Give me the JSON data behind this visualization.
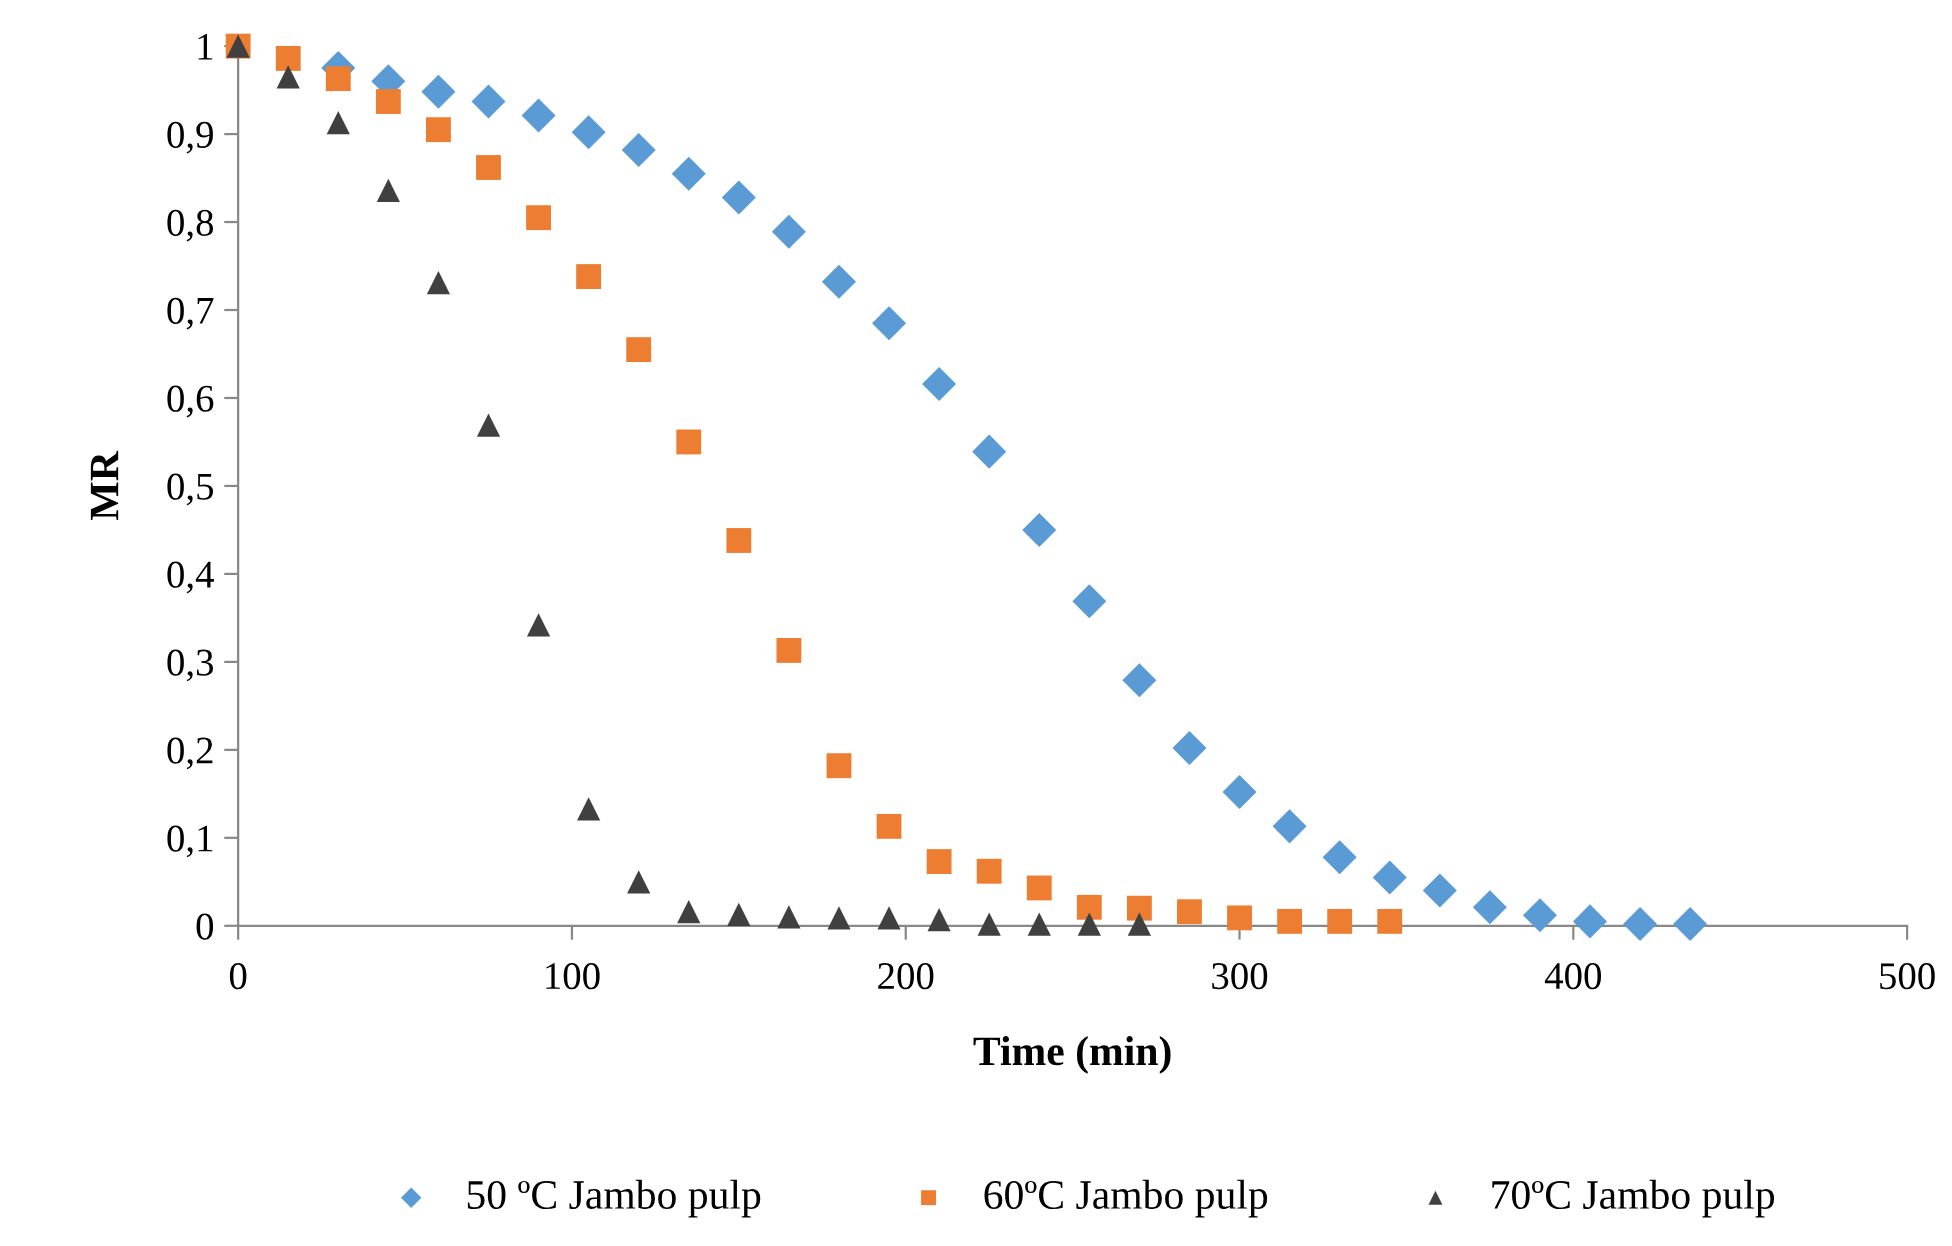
{
  "chart_data": {
    "type": "scatter",
    "xlabel": "Time (min)",
    "ylabel": "MR",
    "xlim": [
      0,
      500
    ],
    "xticks": [
      0,
      100,
      200,
      300,
      400,
      500
    ],
    "ylim": [
      0,
      1
    ],
    "yticks": [
      0,
      {
        "value": 0.1,
        "label": "0,1"
      },
      {
        "value": 0.2,
        "label": "0,2"
      },
      {
        "value": 0.3,
        "label": "0,3"
      },
      {
        "value": 0.4,
        "label": "0,4"
      },
      {
        "value": 0.5,
        "label": "0,5"
      },
      {
        "value": 0.6,
        "label": "0,6"
      },
      {
        "value": 0.7,
        "label": "0,7"
      },
      {
        "value": 0.8,
        "label": "0,8"
      },
      {
        "value": 0.9,
        "label": "0,9"
      },
      1
    ],
    "grid": false,
    "legend": "bottom",
    "series": [
      {
        "name": "50 ºC Jambo pulp",
        "color": "#5b9bd5",
        "marker": "diamond",
        "x": [
          30,
          45,
          60,
          75,
          90,
          105,
          120,
          135,
          150,
          165,
          180,
          195,
          210,
          225,
          240,
          255,
          270,
          285,
          300,
          315,
          330,
          345,
          360,
          375,
          390,
          405,
          420,
          435
        ],
        "values": [
          0.975,
          0.96,
          0.948,
          0.937,
          0.921,
          0.902,
          0.882,
          0.855,
          0.828,
          0.789,
          0.732,
          0.685,
          0.616,
          0.539,
          0.45,
          0.369,
          0.279,
          0.202,
          0.152,
          0.113,
          0.078,
          0.055,
          0.04,
          0.021,
          0.012,
          0.005,
          0.002,
          0.002
        ]
      },
      {
        "name": "60ºC Jambo pulp",
        "color": "#ed7d31",
        "marker": "square",
        "x": [
          0,
          15,
          30,
          45,
          60,
          75,
          90,
          105,
          120,
          135,
          150,
          165,
          180,
          195,
          210,
          225,
          240,
          255,
          270,
          285,
          300,
          315,
          330,
          345
        ],
        "values": [
          1,
          0.986,
          0.963,
          0.937,
          0.905,
          0.862,
          0.805,
          0.738,
          0.655,
          0.55,
          0.438,
          0.313,
          0.182,
          0.113,
          0.073,
          0.062,
          0.043,
          0.021,
          0.02,
          0.016,
          0.009,
          0.005,
          0.005,
          0.005
        ]
      },
      {
        "name": "70ºC Jambo pulp",
        "color": "#404040",
        "marker": "triangle",
        "x": [
          0,
          15,
          30,
          45,
          60,
          75,
          90,
          105,
          120,
          135,
          150,
          165,
          180,
          195,
          210,
          225,
          240,
          255,
          270
        ],
        "values": [
          1,
          0.965,
          0.913,
          0.836,
          0.731,
          0.569,
          0.342,
          0.133,
          0.05,
          0.016,
          0.013,
          0.01,
          0.009,
          0.009,
          0.007,
          0.002,
          0.002,
          0.002,
          0.002
        ]
      }
    ]
  }
}
